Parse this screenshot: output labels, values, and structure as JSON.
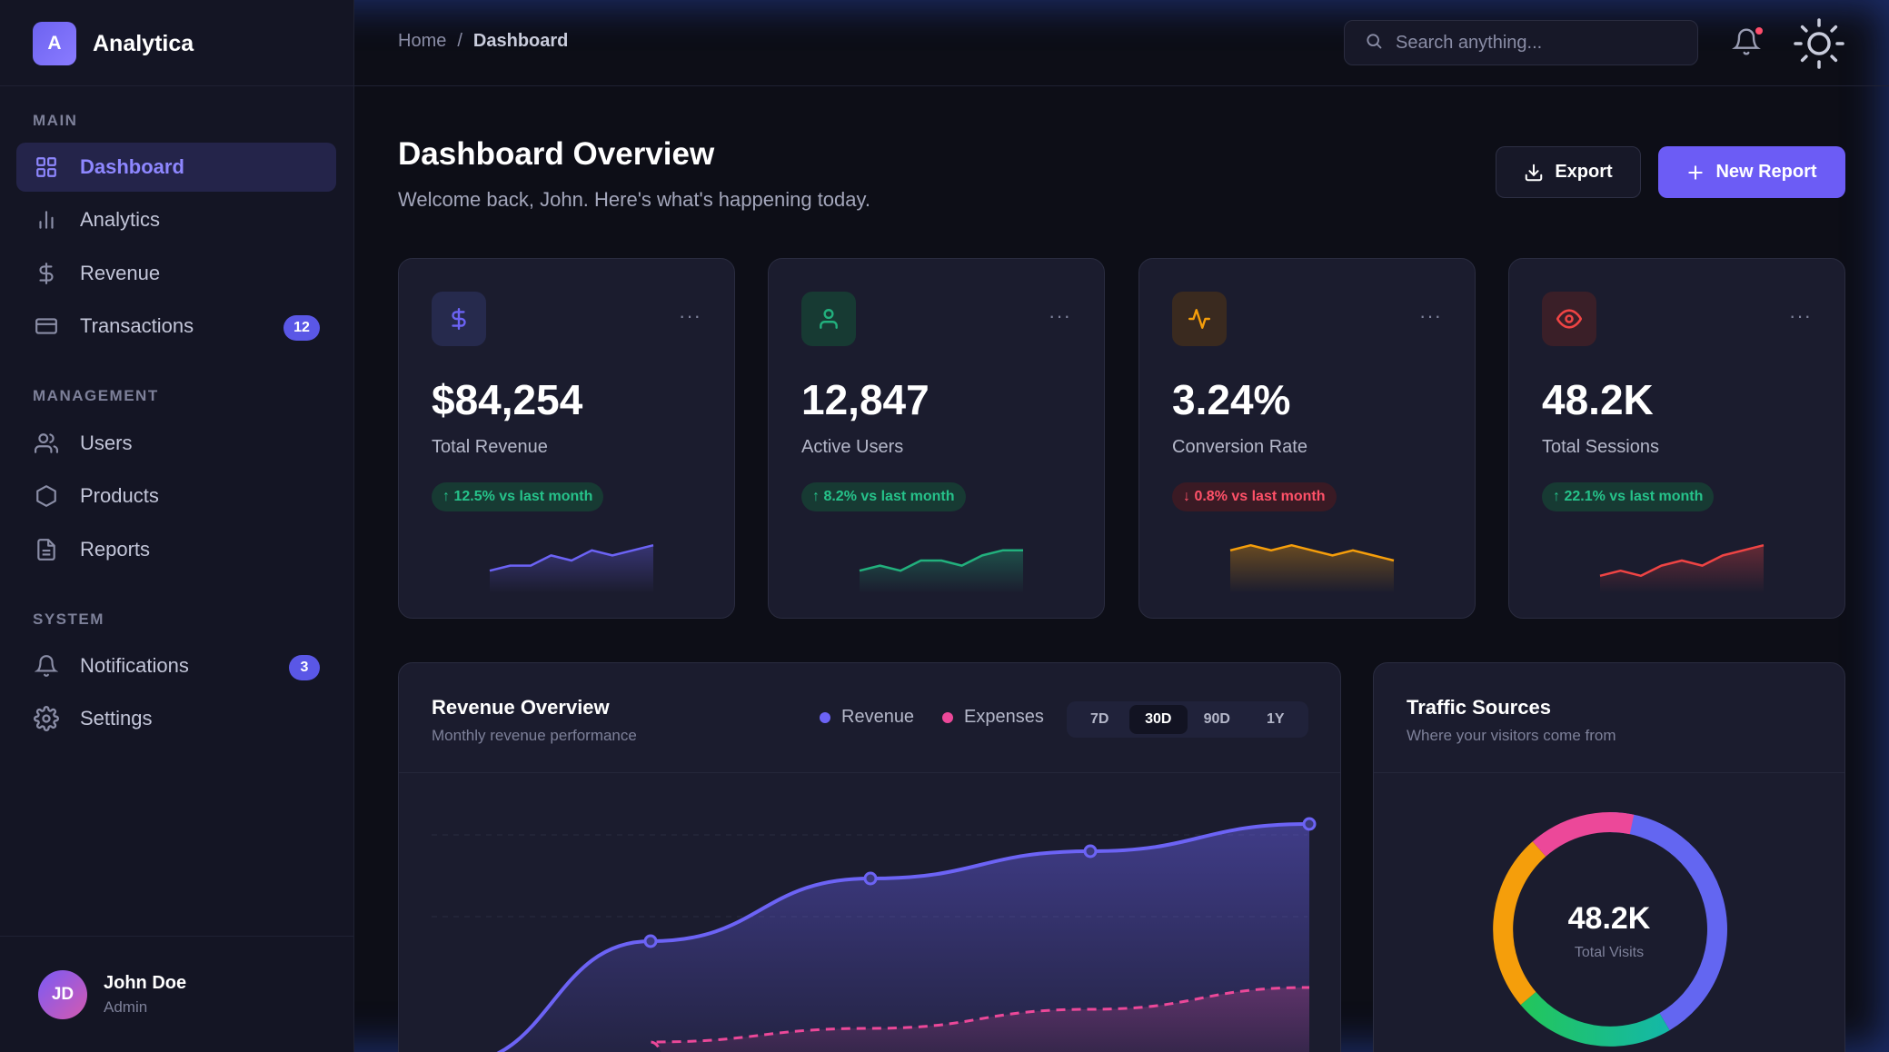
{
  "brand": {
    "logo_letter": "A",
    "name": "Analytica"
  },
  "sidebar": {
    "sections": [
      {
        "title": "MAIN",
        "items": [
          {
            "label": "Dashboard",
            "icon": "grid-icon",
            "active": true
          },
          {
            "label": "Analytics",
            "icon": "bar-chart-icon"
          },
          {
            "label": "Revenue",
            "icon": "dollar-icon"
          },
          {
            "label": "Transactions",
            "icon": "credit-card-icon",
            "badge": "12"
          }
        ]
      },
      {
        "title": "MANAGEMENT",
        "items": [
          {
            "label": "Users",
            "icon": "users-icon"
          },
          {
            "label": "Products",
            "icon": "box-icon"
          },
          {
            "label": "Reports",
            "icon": "file-icon"
          }
        ]
      },
      {
        "title": "SYSTEM",
        "items": [
          {
            "label": "Notifications",
            "icon": "bell-icon",
            "badge": "3"
          },
          {
            "label": "Settings",
            "icon": "gear-icon"
          }
        ]
      }
    ]
  },
  "user": {
    "initials": "JD",
    "name": "John Doe",
    "role": "Admin"
  },
  "header": {
    "breadcrumb": {
      "root": "Home",
      "separator": "/",
      "current": "Dashboard"
    },
    "search_placeholder": "Search anything..."
  },
  "page": {
    "title": "Dashboard Overview",
    "subtitle": "Welcome back, John. Here's what's happening today.",
    "export_label": "Export",
    "new_report_label": "New Report"
  },
  "stats": [
    {
      "value": "$84,254",
      "label": "Total Revenue",
      "change": "12.5% vs last month",
      "direction": "up",
      "icon": "dollar-icon",
      "color": "#6c63f5",
      "spark": [
        3,
        4,
        4,
        6,
        5,
        7,
        6,
        7,
        8
      ]
    },
    {
      "value": "12,847",
      "label": "Active Users",
      "change": "8.2% vs last month",
      "direction": "up",
      "icon": "user-icon",
      "color": "#22b07d",
      "spark": [
        3,
        4,
        3,
        5,
        5,
        4,
        6,
        7,
        7
      ]
    },
    {
      "value": "3.24%",
      "label": "Conversion Rate",
      "change": "0.8% vs last month",
      "direction": "down",
      "icon": "activity-icon",
      "color": "#f59e0b",
      "spark": [
        7,
        8,
        7,
        8,
        7,
        6,
        7,
        6,
        5
      ]
    },
    {
      "value": "48.2K",
      "label": "Total Sessions",
      "change": "22.1% vs last month",
      "direction": "up",
      "icon": "eye-icon",
      "color": "#ef4444",
      "spark": [
        2,
        3,
        2,
        4,
        5,
        4,
        6,
        7,
        8
      ]
    }
  ],
  "revenue_panel": {
    "title": "Revenue Overview",
    "subtitle": "Monthly revenue performance",
    "legend": [
      {
        "name": "Revenue",
        "color": "#6c63f5"
      },
      {
        "name": "Expenses",
        "color": "#ec4899"
      }
    ],
    "ranges": [
      "7D",
      "30D",
      "90D",
      "1Y"
    ],
    "active_range": "30D"
  },
  "traffic_panel": {
    "title": "Traffic Sources",
    "subtitle": "Where your visitors come from",
    "center_value": "48.2K",
    "center_label": "Total Visits"
  },
  "chart_data": {
    "type": "area",
    "series": [
      {
        "name": "Revenue",
        "values": [
          10,
          55,
          78,
          88,
          98
        ]
      },
      {
        "name": "Expenses",
        "values": [
          2,
          18,
          23,
          30,
          38
        ]
      }
    ]
  }
}
